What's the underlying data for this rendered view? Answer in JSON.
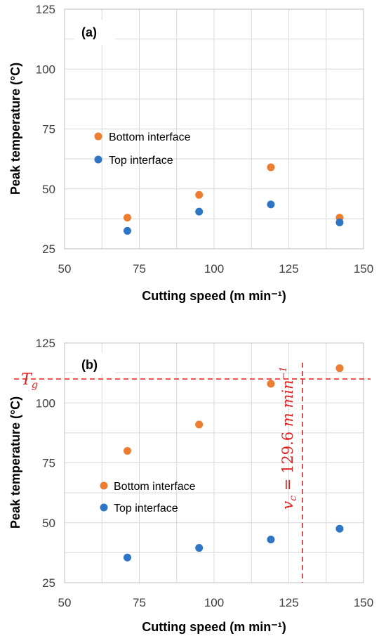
{
  "colors": {
    "bottom": "#ED7D31",
    "top": "#2E75C6",
    "grid": "#D9D9D9",
    "threshold": "#E02020"
  },
  "chart_data": [
    {
      "type": "scatter",
      "panel_label": "(a)",
      "xlabel": "Cutting speed (m min⁻¹)",
      "ylabel": "Peak temperature (°C)",
      "xlim": [
        50,
        150
      ],
      "ylim": [
        25,
        125
      ],
      "xticks": [
        50,
        75,
        100,
        125,
        150
      ],
      "yticks": [
        25,
        50,
        75,
        100,
        125
      ],
      "grid": true,
      "legend_position": "center-left",
      "series": [
        {
          "name": "Bottom interface",
          "x": [
            71,
            95,
            119,
            142
          ],
          "y": [
            38,
            47.5,
            59,
            38
          ]
        },
        {
          "name": "Top interface",
          "x": [
            71,
            95,
            119,
            142
          ],
          "y": [
            32.5,
            40.5,
            43.5,
            36
          ]
        }
      ]
    },
    {
      "type": "scatter",
      "panel_label": "(b)",
      "xlabel": "Cutting speed (m min⁻¹)",
      "ylabel": "Peak temperature (°C)",
      "xlim": [
        50,
        150
      ],
      "ylim": [
        25,
        125
      ],
      "xticks": [
        50,
        75,
        100,
        125,
        150
      ],
      "yticks": [
        25,
        50,
        75,
        100,
        125
      ],
      "grid": true,
      "legend_position": "lower-left",
      "series": [
        {
          "name": "Bottom interface",
          "x": [
            71,
            95,
            119,
            142
          ],
          "y": [
            80,
            91,
            108,
            114.5
          ]
        },
        {
          "name": "Top interface",
          "x": [
            71,
            95,
            119,
            142
          ],
          "y": [
            35.5,
            39.5,
            43,
            47.5
          ]
        }
      ],
      "annotations": {
        "hline": {
          "y": 110,
          "label": "T_g"
        },
        "vline": {
          "x": 129.6,
          "label": "v_c = 129.6 m min⁻¹"
        }
      }
    }
  ]
}
